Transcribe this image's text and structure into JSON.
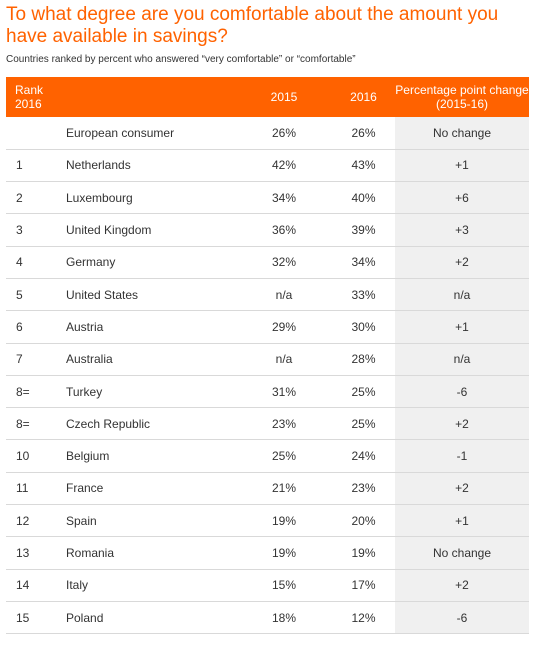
{
  "title": "To what degree are you comfortable about the amount you have available in savings?",
  "subtitle": "Countries ranked by percent who answered “very comfortable” or “comfortable”",
  "chart_data": {
    "type": "table",
    "columns": [
      "Rank 2016",
      "",
      "2015",
      "2016",
      "Percentage point change (2015-16)"
    ],
    "header": {
      "rank": "Rank\n2016",
      "country": "",
      "y2015": "2015",
      "y2016": "2016",
      "change": "Percentage point change (2015-16)"
    },
    "rows": [
      {
        "rank": "",
        "country": "European consumer",
        "y2015": "26%",
        "y2016": "26%",
        "change": "No change"
      },
      {
        "rank": "1",
        "country": "Netherlands",
        "y2015": "42%",
        "y2016": "43%",
        "change": "+1"
      },
      {
        "rank": "2",
        "country": "Luxembourg",
        "y2015": "34%",
        "y2016": "40%",
        "change": "+6"
      },
      {
        "rank": "3",
        "country": "United Kingdom",
        "y2015": "36%",
        "y2016": "39%",
        "change": "+3"
      },
      {
        "rank": "4",
        "country": "Germany",
        "y2015": "32%",
        "y2016": "34%",
        "change": "+2"
      },
      {
        "rank": "5",
        "country": "United States",
        "y2015": "n/a",
        "y2016": "33%",
        "change": "n/a"
      },
      {
        "rank": "6",
        "country": "Austria",
        "y2015": "29%",
        "y2016": "30%",
        "change": "+1"
      },
      {
        "rank": "7",
        "country": "Australia",
        "y2015": "n/a",
        "y2016": "28%",
        "change": "n/a"
      },
      {
        "rank": "8=",
        "country": "Turkey",
        "y2015": "31%",
        "y2016": "25%",
        "change": "-6"
      },
      {
        "rank": "8=",
        "country": "Czech Republic",
        "y2015": "23%",
        "y2016": "25%",
        "change": "+2"
      },
      {
        "rank": "10",
        "country": "Belgium",
        "y2015": "25%",
        "y2016": "24%",
        "change": "-1"
      },
      {
        "rank": "11",
        "country": "France",
        "y2015": "21%",
        "y2016": "23%",
        "change": "+2"
      },
      {
        "rank": "12",
        "country": "Spain",
        "y2015": "19%",
        "y2016": "20%",
        "change": "+1"
      },
      {
        "rank": "13",
        "country": "Romania",
        "y2015": "19%",
        "y2016": "19%",
        "change": "No change"
      },
      {
        "rank": "14",
        "country": "Italy",
        "y2015": "15%",
        "y2016": "17%",
        "change": "+2"
      },
      {
        "rank": "15",
        "country": "Poland",
        "y2015": "18%",
        "y2016": "12%",
        "change": "-6"
      }
    ]
  },
  "colors": {
    "accent": "#ff6200",
    "change_column_bg": "#f0f0f0",
    "row_divider": "#d9d9d9"
  }
}
